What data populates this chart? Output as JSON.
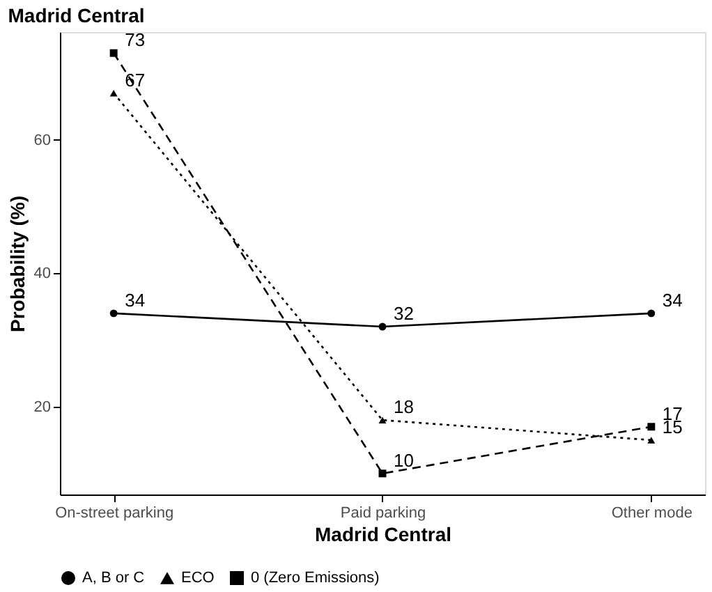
{
  "chart_data": {
    "type": "line",
    "title": "Madrid Central",
    "xlabel": "Madrid Central",
    "ylabel": "Probability (%)",
    "categories": [
      "On-street parking",
      "Paid parking",
      "Other mode"
    ],
    "series": [
      {
        "name": "A, B or C",
        "color": "#000000",
        "values": [
          34,
          32,
          34
        ],
        "marker": "circle",
        "line_style": "solid"
      },
      {
        "name": "ECO",
        "color": "#000000",
        "values": [
          67,
          18,
          15
        ],
        "marker": "triangle",
        "line_style": "dotted"
      },
      {
        "name": "0 (Zero Emissions)",
        "color": "#000000",
        "values": [
          73,
          10,
          17
        ],
        "marker": "square",
        "line_style": "dashed"
      }
    ],
    "ylim": [
      6.85,
      76.15
    ],
    "yticks": [
      20,
      40,
      60
    ],
    "grid": false,
    "legend": "bottom",
    "data_labels": true
  }
}
